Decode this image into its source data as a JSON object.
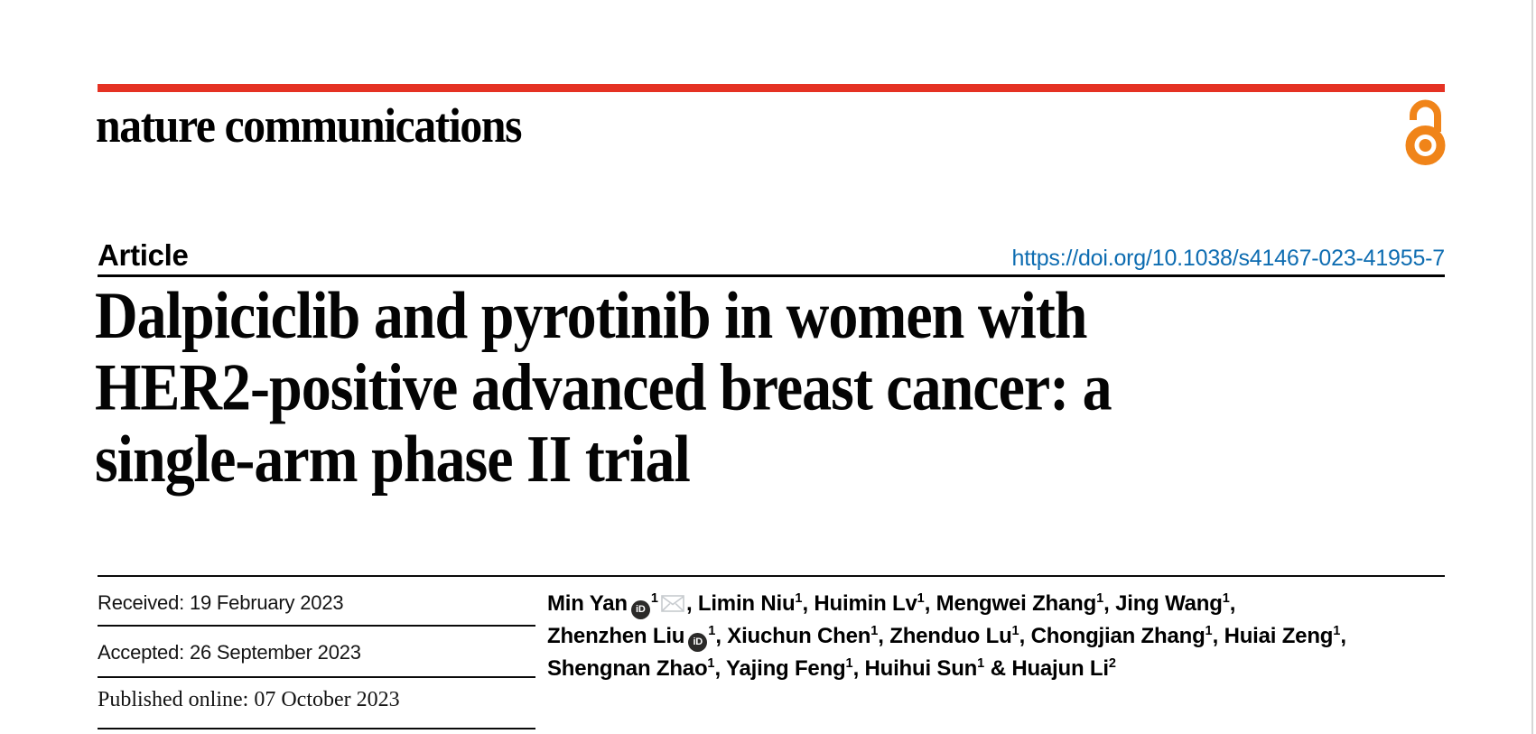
{
  "masthead": {
    "brand": "nature communications",
    "bar_color": "#e53223",
    "open_access_color": "#f08419"
  },
  "article": {
    "kicker": "Article",
    "doi": "https://doi.org/10.1038/s41467-023-41955-7",
    "doi_color": "#0d6cb1",
    "title_lines": [
      "Dalpiciclib and pyrotinib in women with",
      "HER2-positive advanced breast cancer: a",
      "single-arm phase II trial"
    ]
  },
  "history": {
    "received": "Received: 19 February 2023",
    "accepted": "Accepted: 26 September 2023",
    "published": "Published online: 07 October 2023"
  },
  "authors": {
    "orcid_color": "#2b2a29",
    "email_icon_color": "#c7cbcf",
    "orcid_icon_label": "iD",
    "lines": [
      [
        {
          "type": "name",
          "text": "Min Yan"
        },
        {
          "type": "orcid-icon"
        },
        {
          "type": "sup",
          "text": "1"
        },
        {
          "type": "email-icon"
        },
        {
          "type": "text",
          "text": ", "
        },
        {
          "type": "name",
          "text": "Limin Niu"
        },
        {
          "type": "sup",
          "text": "1"
        },
        {
          "type": "text",
          "text": ", "
        },
        {
          "type": "name",
          "text": "Huimin Lv"
        },
        {
          "type": "sup",
          "text": "1"
        },
        {
          "type": "text",
          "text": ", "
        },
        {
          "type": "name",
          "text": "Mengwei Zhang"
        },
        {
          "type": "sup",
          "text": "1"
        },
        {
          "type": "text",
          "text": ", "
        },
        {
          "type": "name",
          "text": "Jing Wang"
        },
        {
          "type": "sup",
          "text": "1"
        },
        {
          "type": "text",
          "text": ","
        }
      ],
      [
        {
          "type": "name",
          "text": "Zhenzhen Liu"
        },
        {
          "type": "orcid-icon"
        },
        {
          "type": "sup",
          "text": "1"
        },
        {
          "type": "text",
          "text": ", "
        },
        {
          "type": "name",
          "text": "Xiuchun Chen"
        },
        {
          "type": "sup",
          "text": "1"
        },
        {
          "type": "text",
          "text": ", "
        },
        {
          "type": "name",
          "text": "Zhenduo Lu"
        },
        {
          "type": "sup",
          "text": "1"
        },
        {
          "type": "text",
          "text": ", "
        },
        {
          "type": "name",
          "text": "Chongjian Zhang"
        },
        {
          "type": "sup",
          "text": "1"
        },
        {
          "type": "text",
          "text": ", "
        },
        {
          "type": "name",
          "text": "Huiai Zeng"
        },
        {
          "type": "sup",
          "text": "1"
        },
        {
          "type": "text",
          "text": ","
        }
      ],
      [
        {
          "type": "name",
          "text": "Shengnan Zhao"
        },
        {
          "type": "sup",
          "text": "1"
        },
        {
          "type": "text",
          "text": ", "
        },
        {
          "type": "name",
          "text": "Yajing Feng"
        },
        {
          "type": "sup",
          "text": "1"
        },
        {
          "type": "text",
          "text": ", "
        },
        {
          "type": "name",
          "text": "Huihui Sun"
        },
        {
          "type": "sup",
          "text": "1"
        },
        {
          "type": "text",
          "text": " & "
        },
        {
          "type": "name",
          "text": "Huajun Li"
        },
        {
          "type": "sup",
          "text": "2"
        }
      ]
    ]
  }
}
